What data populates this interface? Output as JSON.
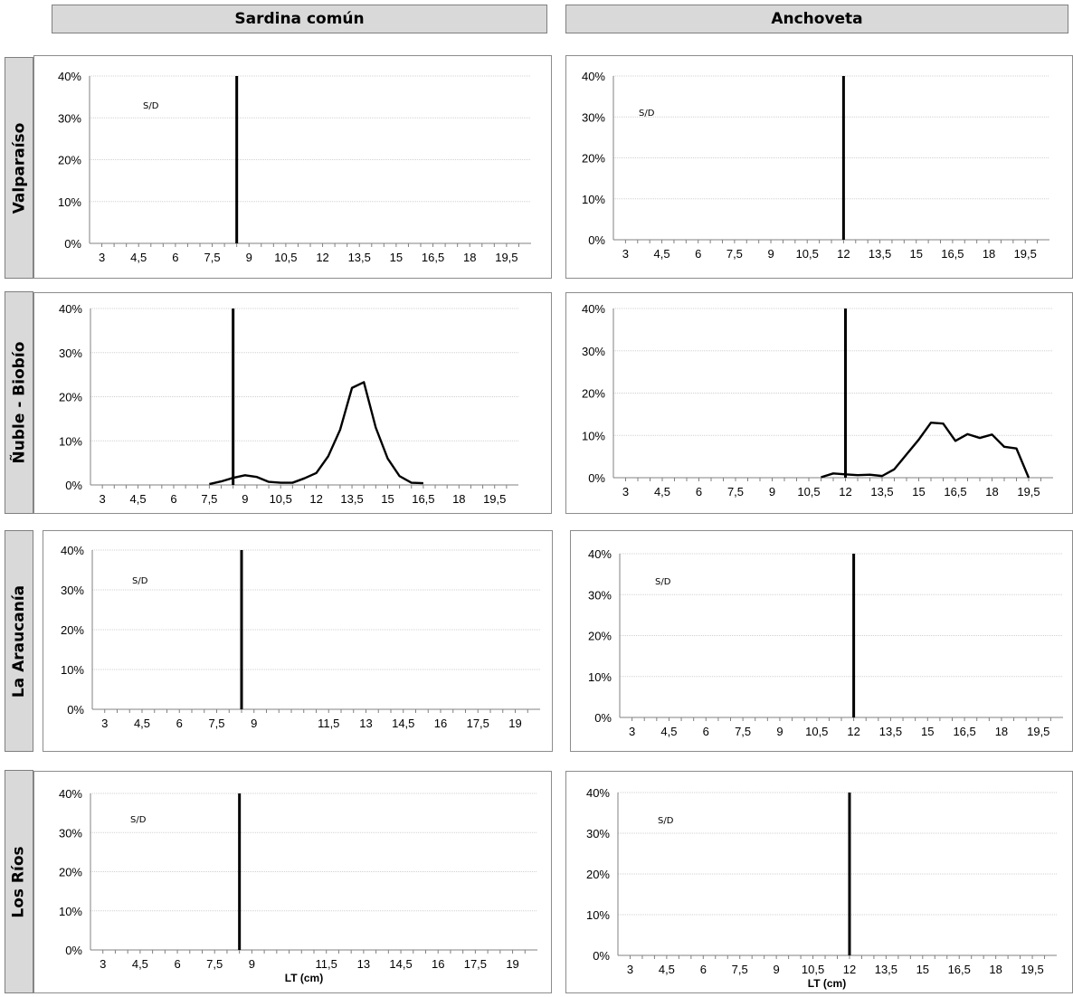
{
  "column_headers": [
    "Sardina común",
    "Anchoveta"
  ],
  "row_headers": [
    "Valparaíso",
    "Ñuble - Biobío",
    "La Araucanía",
    "Los Ríos"
  ],
  "chart_data": [
    {
      "type": "line",
      "species": "Sardina común",
      "region": "Valparaíso",
      "y_ticks": [
        "0%",
        "10%",
        "20%",
        "30%",
        "40%"
      ],
      "ylim": [
        0,
        0.4
      ],
      "x_ticks": [
        "3",
        "4,5",
        "6",
        "7,5",
        "9",
        "10,5",
        "12",
        "13,5",
        "15",
        "16,5",
        "18",
        "19,5"
      ],
      "xlim": [
        2.5,
        20.5
      ],
      "reference_line_x": 8.5,
      "no_data_label": "S/D",
      "series": [],
      "xlabel": ""
    },
    {
      "type": "line",
      "species": "Anchoveta",
      "region": "Valparaíso",
      "y_ticks": [
        "0%",
        "10%",
        "20%",
        "30%",
        "40%"
      ],
      "ylim": [
        0,
        0.4
      ],
      "x_ticks": [
        "3",
        "4,5",
        "6",
        "7,5",
        "9",
        "10,5",
        "12",
        "13,5",
        "15",
        "16,5",
        "18",
        "19,5"
      ],
      "xlim": [
        2.5,
        20.5
      ],
      "reference_line_x": 12,
      "no_data_label": "S/D",
      "series": [],
      "xlabel": ""
    },
    {
      "type": "line",
      "species": "Sardina común",
      "region": "Ñuble - Biobío",
      "y_ticks": [
        "0%",
        "10%",
        "20%",
        "30%",
        "40%"
      ],
      "ylim": [
        0,
        0.4
      ],
      "x_ticks": [
        "3",
        "4,5",
        "6",
        "7,5",
        "9",
        "10,5",
        "12",
        "13,5",
        "15",
        "16,5",
        "18",
        "19,5"
      ],
      "xlim": [
        2.5,
        20.5
      ],
      "reference_line_x": 8.5,
      "no_data_label": "",
      "series": [
        {
          "x": [
            7.5,
            8,
            8.5,
            9,
            9.5,
            10,
            10.5,
            11,
            11.5,
            12,
            12.5,
            13,
            13.5,
            14,
            14.5,
            15,
            15.5,
            16,
            16.5
          ],
          "y": [
            0.002,
            0.008,
            0.016,
            0.022,
            0.018,
            0.007,
            0.005,
            0.005,
            0.015,
            0.027,
            0.065,
            0.125,
            0.22,
            0.233,
            0.13,
            0.06,
            0.02,
            0.005,
            0.004
          ]
        }
      ],
      "xlabel": ""
    },
    {
      "type": "line",
      "species": "Anchoveta",
      "region": "Ñuble - Biobío",
      "y_ticks": [
        "0%",
        "10%",
        "20%",
        "30%",
        "40%"
      ],
      "ylim": [
        0,
        0.4
      ],
      "x_ticks": [
        "3",
        "4,5",
        "6",
        "7,5",
        "9",
        "10,5",
        "12",
        "13,5",
        "15",
        "16,5",
        "18",
        "19,5"
      ],
      "xlim": [
        2.5,
        20.5
      ],
      "reference_line_x": 12,
      "no_data_label": "",
      "series": [
        {
          "x": [
            11,
            11.5,
            12,
            12.5,
            13,
            13.5,
            14,
            14.5,
            15,
            15.5,
            16,
            16.5,
            17,
            17.5,
            18,
            18.5,
            19,
            19.5
          ],
          "y": [
            0.001,
            0.01,
            0.008,
            0.006,
            0.007,
            0.004,
            0.02,
            0.055,
            0.09,
            0.13,
            0.128,
            0.087,
            0.103,
            0.094,
            0.102,
            0.073,
            0.069,
            0.0
          ]
        }
      ],
      "xlabel": ""
    },
    {
      "type": "line",
      "species": "Sardina común",
      "region": "La Araucanía",
      "y_ticks": [
        "0%",
        "10%",
        "20%",
        "30%",
        "40%"
      ],
      "ylim": [
        0,
        0.4
      ],
      "x_ticks": [
        "3",
        "4,5",
        "6",
        "7,5",
        "9",
        "",
        "11,5",
        "13",
        "14,5",
        "16",
        "17,5",
        "19"
      ],
      "xlim": [
        2.5,
        20.5
      ],
      "reference_line_x": 8.5,
      "no_data_label": "S/D",
      "series": [],
      "xlabel": ""
    },
    {
      "type": "line",
      "species": "Anchoveta",
      "region": "La Araucanía",
      "y_ticks": [
        "0%",
        "10%",
        "20%",
        "30%",
        "40%"
      ],
      "ylim": [
        0,
        0.4
      ],
      "x_ticks": [
        "3",
        "4,5",
        "6",
        "7,5",
        "9",
        "10,5",
        "12",
        "13,5",
        "15",
        "16,5",
        "18",
        "19,5"
      ],
      "xlim": [
        2.5,
        20.5
      ],
      "reference_line_x": 12,
      "no_data_label": "S/D",
      "series": [],
      "xlabel": ""
    },
    {
      "type": "line",
      "species": "Sardina común",
      "region": "Los Ríos",
      "y_ticks": [
        "0%",
        "10%",
        "20%",
        "30%",
        "40%"
      ],
      "ylim": [
        0,
        0.4
      ],
      "x_ticks": [
        "3",
        "4,5",
        "6",
        "7,5",
        "9",
        "",
        "11,5",
        "13",
        "14,5",
        "16",
        "17,5",
        "19"
      ],
      "xlim": [
        2.5,
        20.5
      ],
      "reference_line_x": 8.5,
      "no_data_label": "S/D",
      "series": [],
      "xlabel": "LT (cm)"
    },
    {
      "type": "line",
      "species": "Anchoveta",
      "region": "Los Ríos",
      "y_ticks": [
        "0%",
        "10%",
        "20%",
        "30%",
        "40%"
      ],
      "ylim": [
        0,
        0.4
      ],
      "x_ticks": [
        "3",
        "4,5",
        "6",
        "7,5",
        "9",
        "10,5",
        "12",
        "13,5",
        "15",
        "16,5",
        "18",
        "19,5"
      ],
      "xlim": [
        2.5,
        20.5
      ],
      "reference_line_x": 12,
      "no_data_label": "S/D",
      "series": [],
      "xlabel": "LT (cm)"
    }
  ]
}
